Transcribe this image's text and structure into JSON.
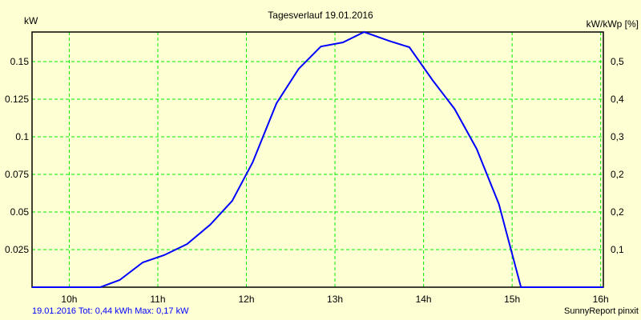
{
  "chart_data": {
    "type": "line",
    "title": "Tagesverlauf 19.01.2016",
    "ylabel": "kW",
    "ylabel_right": "kW/kWp [%]",
    "xlim": [
      9.58,
      16.03
    ],
    "ylim": [
      0,
      0.1697
    ],
    "grid": true,
    "x_ticks": [
      10,
      11,
      12,
      13,
      14,
      15,
      16
    ],
    "x_tick_labels": [
      "10h",
      "11h",
      "12h",
      "13h",
      "14h",
      "15h",
      "16h"
    ],
    "y_ticks": [
      0.025,
      0.05,
      0.075,
      0.1,
      0.125,
      0.15
    ],
    "y_tick_labels": [
      "0.025",
      "0.05",
      "0.075",
      "0.1",
      "0.125",
      "0.15"
    ],
    "y_right_tick_labels": [
      "0,1",
      "0,2",
      "0,2",
      "0,3",
      "0,4",
      "0,5"
    ],
    "series": [
      {
        "name": "kW",
        "color": "#0000ff",
        "x": [
          9.58,
          10.35,
          10.57,
          10.83,
          11.07,
          11.33,
          11.59,
          11.84,
          12.07,
          12.34,
          12.59,
          12.84,
          13.09,
          13.33,
          13.61,
          13.84,
          14.1,
          14.35,
          14.6,
          14.85,
          15.1,
          16.03
        ],
        "y": [
          0,
          0,
          0.0048,
          0.0165,
          0.0213,
          0.0287,
          0.0415,
          0.0574,
          0.083,
          0.1223,
          0.1452,
          0.16,
          0.1628,
          0.1697,
          0.1638,
          0.1596,
          0.1378,
          0.1186,
          0.092,
          0.0553,
          0,
          0
        ]
      }
    ],
    "footer_left": "19.01.2016 Tot: 0,44 kWh Max: 0,17 kW",
    "footer_right": "SunnyReport pinxit"
  },
  "colors": {
    "grid": "#00ee00",
    "line": "#0000ff",
    "footer": "#0000ff"
  }
}
